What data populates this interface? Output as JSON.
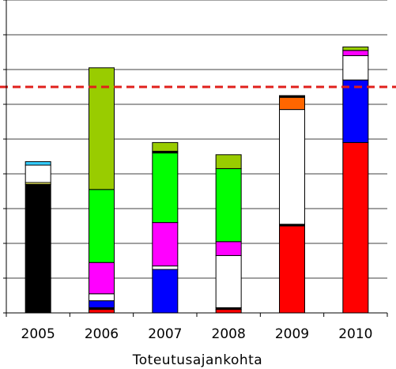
{
  "chart_data": {
    "type": "bar",
    "stacked": true,
    "title": "",
    "xlabel": "Toteutusajankohta",
    "ylabel": "",
    "categories": [
      "2005",
      "2006",
      "2007",
      "2008",
      "2009",
      "2010"
    ],
    "ylim": [
      0,
      9
    ],
    "grid": true,
    "legend": "none",
    "reference_line": {
      "value": 6.5,
      "color": "#e0201c",
      "style": "dashed"
    },
    "series_colors": [
      "#000000",
      "#ff0000",
      "#0000ff",
      "#ffffff",
      "#ff00ff",
      "#00ff00",
      "#99cc00",
      "#ff6600",
      "#ffff66",
      "#33ccff"
    ],
    "stacks": [
      [
        {
          "color": "#000000",
          "value": 3.7
        },
        {
          "color": "#ffff66",
          "value": 0.05
        },
        {
          "color": "#ffffff",
          "value": 0.5
        },
        {
          "color": "#33ccff",
          "value": 0.1
        }
      ],
      [
        {
          "color": "#ff0000",
          "value": 0.1
        },
        {
          "color": "#000000",
          "value": 0.05
        },
        {
          "color": "#0000ff",
          "value": 0.2
        },
        {
          "color": "#ffffff",
          "value": 0.2
        },
        {
          "color": "#ff00ff",
          "value": 0.9
        },
        {
          "color": "#00ff00",
          "value": 2.1
        },
        {
          "color": "#99cc00",
          "value": 3.5
        }
      ],
      [
        {
          "color": "#0000ff",
          "value": 1.25
        },
        {
          "color": "#ffffff",
          "value": 0.1
        },
        {
          "color": "#ff00ff",
          "value": 1.25
        },
        {
          "color": "#00ff00",
          "value": 2.0
        },
        {
          "color": "#000000",
          "value": 0.05
        },
        {
          "color": "#99cc00",
          "value": 0.25
        }
      ],
      [
        {
          "color": "#ff0000",
          "value": 0.1
        },
        {
          "color": "#000000",
          "value": 0.05
        },
        {
          "color": "#ffffff",
          "value": 1.5
        },
        {
          "color": "#ff00ff",
          "value": 0.4
        },
        {
          "color": "#00ff00",
          "value": 2.1
        },
        {
          "color": "#99cc00",
          "value": 0.4
        }
      ],
      [
        {
          "color": "#ff0000",
          "value": 2.5
        },
        {
          "color": "#000000",
          "value": 0.05
        },
        {
          "color": "#ffffff",
          "value": 3.3
        },
        {
          "color": "#ff6600",
          "value": 0.35
        },
        {
          "color": "#000000",
          "value": 0.05
        }
      ],
      [
        {
          "color": "#ff0000",
          "value": 4.9
        },
        {
          "color": "#0000ff",
          "value": 1.8
        },
        {
          "color": "#ffffff",
          "value": 0.7
        },
        {
          "color": "#ff00ff",
          "value": 0.15
        },
        {
          "color": "#99cc00",
          "value": 0.1
        }
      ]
    ]
  }
}
